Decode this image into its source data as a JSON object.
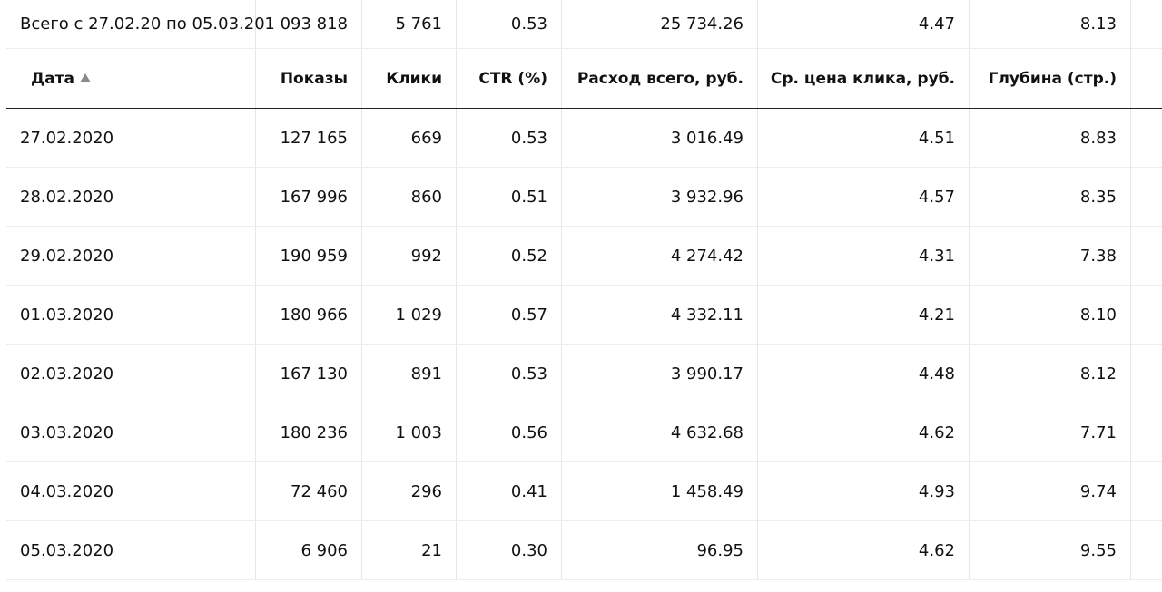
{
  "summary": {
    "label": "Всего с 27.02.20 по 05.03.20",
    "impressions": "1 093 818",
    "clicks": "5 761",
    "ctr": "0.53",
    "spend": "25 734.26",
    "avg_cpc": "4.47",
    "depth": "8.13"
  },
  "columns": {
    "date": "Дата",
    "impressions": "Показы",
    "clicks": "Клики",
    "ctr": "CTR (%)",
    "spend": "Расход всего, руб.",
    "avg_cpc": "Ср. цена клика, руб.",
    "depth": "Глубина (стр.)",
    "sort_icon": "triangle-up-icon"
  },
  "rows": [
    {
      "date": "27.02.2020",
      "impressions": "127 165",
      "clicks": "669",
      "ctr": "0.53",
      "spend": "3 016.49",
      "avg_cpc": "4.51",
      "depth": "8.83"
    },
    {
      "date": "28.02.2020",
      "impressions": "167 996",
      "clicks": "860",
      "ctr": "0.51",
      "spend": "3 932.96",
      "avg_cpc": "4.57",
      "depth": "8.35"
    },
    {
      "date": "29.02.2020",
      "impressions": "190 959",
      "clicks": "992",
      "ctr": "0.52",
      "spend": "4 274.42",
      "avg_cpc": "4.31",
      "depth": "7.38"
    },
    {
      "date": "01.03.2020",
      "impressions": "180 966",
      "clicks": "1 029",
      "ctr": "0.57",
      "spend": "4 332.11",
      "avg_cpc": "4.21",
      "depth": "8.10"
    },
    {
      "date": "02.03.2020",
      "impressions": "167 130",
      "clicks": "891",
      "ctr": "0.53",
      "spend": "3 990.17",
      "avg_cpc": "4.48",
      "depth": "8.12"
    },
    {
      "date": "03.03.2020",
      "impressions": "180 236",
      "clicks": "1 003",
      "ctr": "0.56",
      "spend": "4 632.68",
      "avg_cpc": "4.62",
      "depth": "7.71"
    },
    {
      "date": "04.03.2020",
      "impressions": "72 460",
      "clicks": "296",
      "ctr": "0.41",
      "spend": "1 458.49",
      "avg_cpc": "4.93",
      "depth": "9.74"
    },
    {
      "date": "05.03.2020",
      "impressions": "6 906",
      "clicks": "21",
      "ctr": "0.30",
      "spend": "96.95",
      "avg_cpc": "4.62",
      "depth": "9.55"
    }
  ]
}
